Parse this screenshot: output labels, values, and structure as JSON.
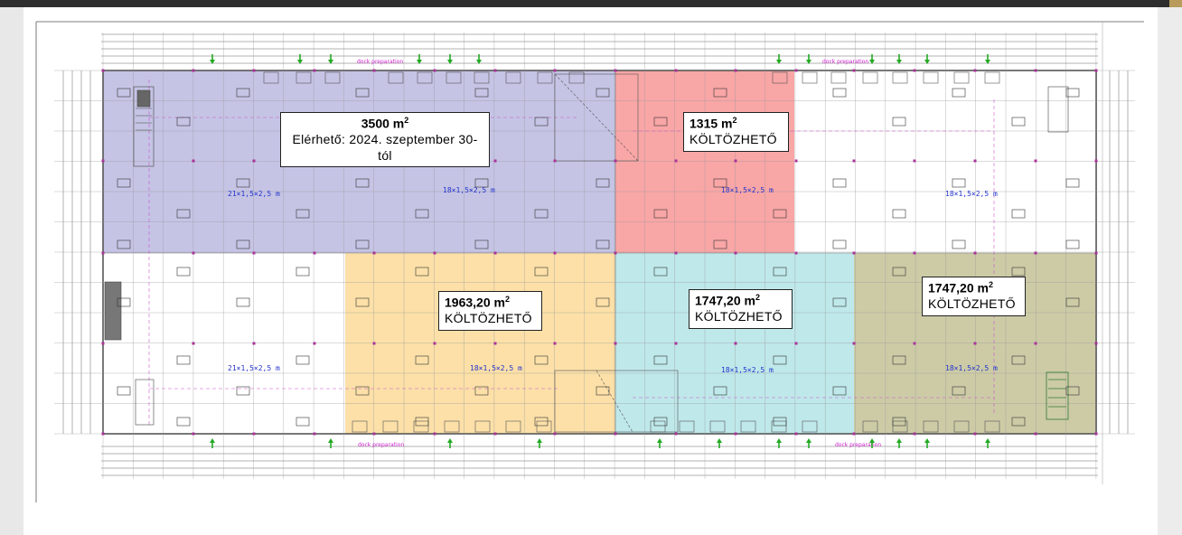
{
  "colors": {
    "purple_zone": "#c5c4e5",
    "red_zone": "#f9a6a6",
    "orange_zone": "#fce0a8",
    "cyan_zone": "#bfe8ea",
    "olive_zone": "#cccba6",
    "arrow": "#22aa22",
    "column": "#aa3399",
    "dim_text": "#2233cc",
    "dock_text": "#cc22cc"
  },
  "units": [
    {
      "id": "purple",
      "area_value": "3500 m",
      "area_sup": "2",
      "status": "Elérhető: 2024. szeptember 30-tól"
    },
    {
      "id": "red",
      "area_value": "1315 m",
      "area_sup": "2",
      "status": "KÖLTÖZHETŐ"
    },
    {
      "id": "orange",
      "area_value": "1963,20 m",
      "area_sup": "2",
      "status": "KÖLTÖZHETŐ"
    },
    {
      "id": "cyan",
      "area_value": "1747,20 m",
      "area_sup": "2",
      "status": "KÖLTÖZHETŐ"
    },
    {
      "id": "olive",
      "area_value": "1747,20 m",
      "area_sup": "2",
      "status": "KÖLTÖZHETŐ"
    }
  ],
  "rack_labels": {
    "a": "21×1,5×2,5 m",
    "b": "18×1,5×2,5 m"
  },
  "dock_label": "dock preparation"
}
